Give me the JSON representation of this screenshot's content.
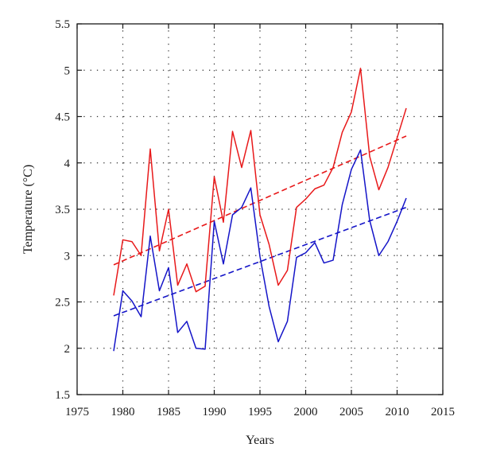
{
  "chart_data": {
    "type": "line",
    "xlabel": "Years",
    "ylabel": "Temperature (°C)",
    "xlim": [
      1975,
      2015
    ],
    "ylim": [
      1.5,
      5.5
    ],
    "xticks": [
      1975,
      1980,
      1985,
      1990,
      1995,
      2000,
      2005,
      2010,
      2015
    ],
    "yticks": [
      1.5,
      2,
      2.5,
      3,
      3.5,
      4,
      4.5,
      5,
      5.5
    ],
    "xtick_labels": [
      "1975",
      "1980",
      "1985",
      "1990",
      "1995",
      "2000",
      "2005",
      "2010",
      "2015"
    ],
    "ytick_labels": [
      "1.5",
      "2",
      "2.5",
      "3",
      "3.5",
      "4",
      "4.5",
      "5",
      "5.5"
    ],
    "grid": "dotted",
    "x": [
      1979,
      1980,
      1981,
      1982,
      1983,
      1984,
      1985,
      1986,
      1987,
      1988,
      1989,
      1990,
      1991,
      1992,
      1993,
      1994,
      1995,
      1996,
      1997,
      1998,
      1999,
      2000,
      2001,
      2002,
      2003,
      2004,
      2005,
      2006,
      2007,
      2008,
      2009,
      2010,
      2011
    ],
    "series": [
      {
        "color": "#e8191a",
        "style": "solid",
        "values": [
          2.57,
          3.17,
          3.15,
          3.0,
          4.15,
          3.05,
          3.5,
          2.68,
          2.91,
          2.61,
          2.67,
          3.85,
          3.36,
          4.34,
          3.95,
          4.35,
          3.44,
          3.12,
          2.68,
          2.84,
          3.52,
          3.61,
          3.72,
          3.76,
          3.95,
          4.33,
          4.55,
          5.02,
          4.07,
          3.71,
          3.95,
          4.27,
          4.59
        ]
      },
      {
        "color": "#1414c8",
        "style": "solid",
        "values": [
          1.97,
          2.62,
          2.51,
          2.34,
          3.21,
          2.62,
          2.87,
          2.17,
          2.29,
          2.0,
          1.99,
          3.37,
          2.91,
          3.44,
          3.52,
          3.73,
          2.99,
          2.45,
          2.07,
          2.29,
          2.98,
          3.03,
          3.14,
          2.92,
          2.95,
          3.55,
          3.93,
          4.14,
          3.38,
          3.0,
          3.15,
          3.37,
          3.62
        ]
      }
    ],
    "trendlines": [
      {
        "color": "#e8191a",
        "style": "dashed",
        "x": [
          1979,
          2011
        ],
        "y": [
          2.9,
          4.29
        ]
      },
      {
        "color": "#1414c8",
        "style": "dashed",
        "x": [
          1979,
          2011
        ],
        "y": [
          2.35,
          3.52
        ]
      }
    ]
  }
}
